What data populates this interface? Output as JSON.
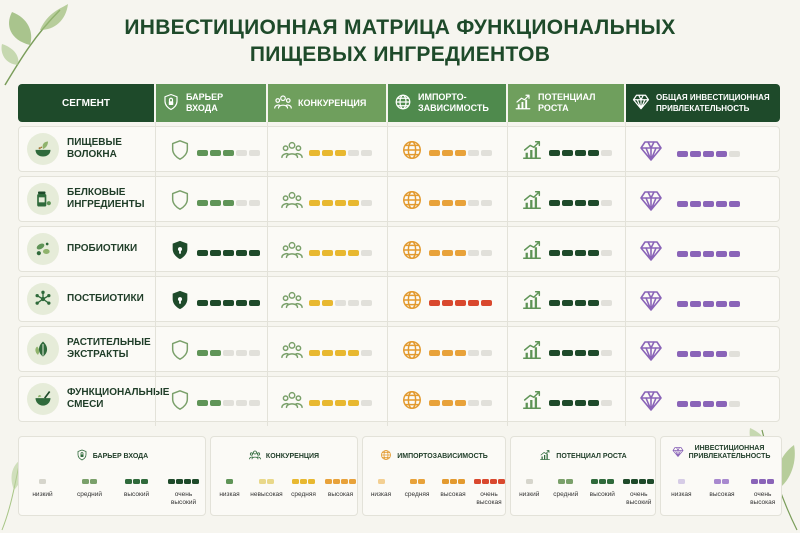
{
  "title": "ИНВЕСТИЦИОННАЯ МАТРИЦА ФУНКЦИОНАЛЬНЫХ ПИЩЕВЫХ ИНГРЕДИЕНТОВ",
  "title_line1": "ИНВЕСТИЦИОННАЯ МАТРИЦА ФУНКЦИОНАЛЬНЫХ",
  "title_line2": "ПИЩЕВЫХ ИНГРЕДИЕНТОВ",
  "columns": [
    {
      "key": "segment",
      "label": "СЕГМЕНТ",
      "color": "#1e4a2a"
    },
    {
      "key": "barrier",
      "label": "БАРЬЕР ВХОДА",
      "label_lines": [
        "БАРЬЕР",
        "ВХОДА"
      ],
      "color": "#5f9457",
      "icon": "lock-shield-icon"
    },
    {
      "key": "competition",
      "label": "КОНКУРЕНЦИЯ",
      "color": "#6f9f5d",
      "icon": "people-icon"
    },
    {
      "key": "import",
      "label": "ИМПОРТО-ЗАВИСИМОСТЬ",
      "label_lines": [
        "ИМПОРТО-",
        "ЗАВИСИМОСТЬ"
      ],
      "color": "#4f8a4d",
      "icon": "globe-icon"
    },
    {
      "key": "growth",
      "label": "ПОТЕНЦИАЛ РОСТА",
      "label_lines": [
        "ПОТЕНЦИАЛ",
        "РОСТА"
      ],
      "color": "#6f9f5d",
      "icon": "growth-chart-icon"
    },
    {
      "key": "overall",
      "label": "ОБЩАЯ ИНВЕСТИЦИОННАЯ ПРИВЛЕКАТЕЛЬНОСТЬ",
      "label_lines": [
        "ОБЩАЯ ИНВЕСТИЦИОННАЯ",
        "ПРИВЛЕКАТЕЛЬНОСТЬ"
      ],
      "color": "#1e4a2a",
      "icon": "diamond-icon"
    }
  ],
  "rows": [
    {
      "segment": "Пищевые волокна",
      "lines": [
        "ПИЩЕВЫЕ",
        "ВОЛОКНА"
      ],
      "icon": "bowl-leaf-icon",
      "barrier": 3,
      "competition": 3,
      "import": 3,
      "growth": 4,
      "overall": 4
    },
    {
      "segment": "Белковые ингредиенты",
      "lines": [
        "БЕЛКОВЫЕ",
        "ИНГРЕДИЕНТЫ"
      ],
      "icon": "protein-jar-icon",
      "barrier": 3,
      "competition": 4,
      "import": 3,
      "growth": 4,
      "overall": 5
    },
    {
      "segment": "Пробиотики",
      "lines": [
        "ПРОБИОТИКИ"
      ],
      "icon": "bacteria-icon",
      "barrier": 5,
      "competition": 4,
      "import": 3,
      "growth": 4,
      "overall": 5
    },
    {
      "segment": "Постбиотики",
      "lines": [
        "ПОСТБИОТИКИ"
      ],
      "icon": "molecule-icon",
      "barrier": 5,
      "competition": 2,
      "import": 5,
      "growth": 4,
      "overall": 5
    },
    {
      "segment": "Растительные экстракты",
      "lines": [
        "РАСТИТЕЛЬНЫЕ",
        "ЭКСТРАКТЫ"
      ],
      "icon": "leaves-icon",
      "barrier": 2,
      "competition": 4,
      "import": 3,
      "growth": 4,
      "overall": 4
    },
    {
      "segment": "Функциональные смеси",
      "lines": [
        "ФУНКЦИОНАЛЬНЫЕ",
        "СМЕСИ"
      ],
      "icon": "mortar-icon",
      "barrier": 2,
      "competition": 4,
      "import": 3,
      "growth": 4,
      "overall": 4
    }
  ],
  "colors": {
    "barrier": "#5f9457",
    "barrier_high": "#1e4a2a",
    "competition": "#e8b830",
    "import": "#e8a23a",
    "import_high": "#d9482e",
    "growth": "#1e4a2a",
    "overall": "#8a64b8",
    "empty": "#e1e0da"
  },
  "legend": [
    {
      "title": "БАРЬЕР ВХОДА",
      "icon": "lock-shield-icon",
      "items": [
        {
          "label": "низкий",
          "n": 1
        },
        {
          "label": "средний",
          "n": 2
        },
        {
          "label": "высокий",
          "n": 3
        },
        {
          "label": "очень высокий",
          "lines": [
            "очень",
            "высокий"
          ],
          "n": 4
        }
      ]
    },
    {
      "title": "КОНКУРЕНЦИЯ",
      "icon": "people-icon",
      "items": [
        {
          "label": "низкая",
          "n": 1
        },
        {
          "label": "невысокая",
          "n": 2
        },
        {
          "label": "средняя",
          "n": 3
        },
        {
          "label": "высокая",
          "n": 4
        }
      ]
    },
    {
      "title": "ИМПОРТОЗАВИСИМОСТЬ",
      "icon": "globe-icon",
      "items": [
        {
          "label": "низкая",
          "n": 1
        },
        {
          "label": "средняя",
          "n": 2
        },
        {
          "label": "высокая",
          "n": 3
        },
        {
          "label": "очень высокая",
          "lines": [
            "очень",
            "высокая"
          ],
          "n": 4
        }
      ]
    },
    {
      "title": "ПОТЕНЦИАЛ РОСТА",
      "icon": "growth-chart-icon",
      "items": [
        {
          "label": "низкий",
          "n": 1
        },
        {
          "label": "средний",
          "n": 2
        },
        {
          "label": "высокий",
          "n": 3
        },
        {
          "label": "очень высокий",
          "lines": [
            "очень",
            "высокий"
          ],
          "n": 4
        }
      ]
    },
    {
      "title": "ИНВЕСТИЦИОННАЯ ПРИВЛЕКАТЕЛЬНОСТЬ",
      "lines": [
        "ИНВЕСТИЦИОННАЯ",
        "ПРИВЛЕКАТЕЛЬНОСТЬ"
      ],
      "icon": "diamond-icon",
      "items": [
        {
          "label": "низкая",
          "n": 1
        },
        {
          "label": "высокая",
          "n": 2
        },
        {
          "label": "очень высокая",
          "lines": [
            "очень",
            "высокая"
          ],
          "n": 3
        }
      ]
    }
  ]
}
